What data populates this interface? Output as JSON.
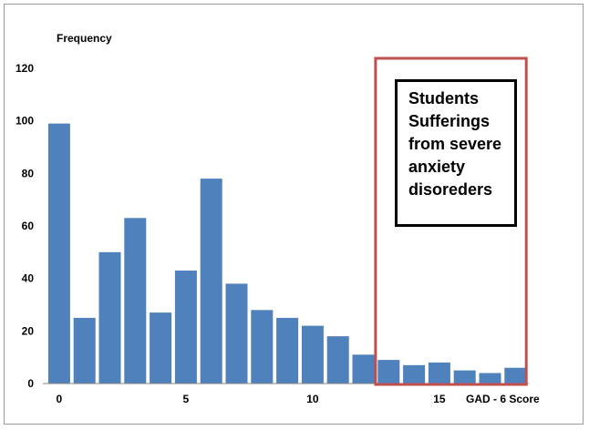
{
  "chart_data": {
    "type": "bar",
    "x": [
      0,
      1,
      2,
      3,
      4,
      5,
      6,
      7,
      8,
      9,
      10,
      11,
      12,
      13,
      14,
      15,
      16,
      17,
      18
    ],
    "values": [
      99,
      25,
      50,
      63,
      27,
      43,
      78,
      38,
      28,
      25,
      22,
      18,
      11,
      9,
      7,
      8,
      5,
      4,
      6
    ],
    "ylabel": "Frequency",
    "xlabel": "GAD - 6 Score",
    "ylim": [
      0,
      120
    ],
    "yticks": [
      0,
      20,
      40,
      60,
      80,
      100,
      120
    ],
    "xticks": [
      0,
      5,
      10,
      15
    ],
    "bar_color": "#4f81bd",
    "grid": false,
    "highlight": {
      "x_range": [
        13,
        18
      ],
      "border_color": "#c0504d",
      "label_lines": [
        "Students",
        "Sufferings",
        "from severe",
        "anxiety",
        "disoreders"
      ]
    }
  }
}
